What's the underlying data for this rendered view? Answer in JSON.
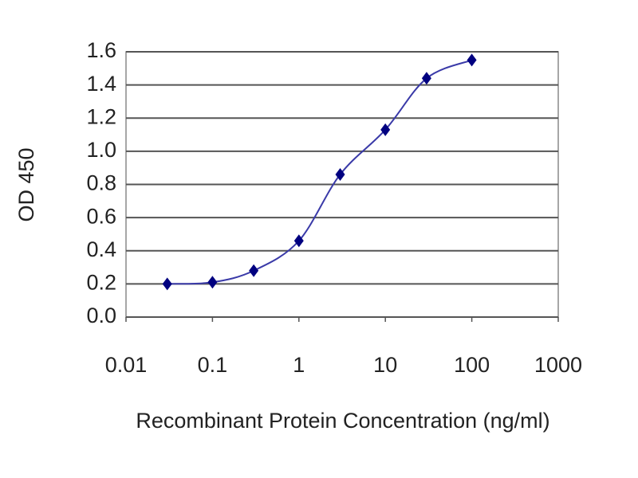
{
  "chart_data": {
    "type": "line",
    "x_label": "Recombinant Protein Concentration (ng/ml)",
    "y_label": "OD 450",
    "x": [
      0.03,
      0.1,
      0.3,
      1,
      3,
      10,
      30,
      100
    ],
    "values": [
      0.2,
      0.21,
      0.28,
      0.46,
      0.86,
      1.13,
      1.44,
      1.55
    ],
    "color": "#000080",
    "line_color": "#3a3aa8",
    "xscale": "log",
    "xlim": [
      0.01,
      1000
    ],
    "xticks": [
      0.01,
      0.1,
      1,
      10,
      100,
      1000
    ],
    "ylim": [
      0,
      1.6
    ],
    "yticks": [
      {
        "value": 0,
        "label": "0.0"
      },
      0.2,
      0.4,
      0.6,
      0.8,
      {
        "value": 1,
        "label": "1.0"
      },
      1.2,
      1.4,
      1.6
    ],
    "grid": true
  }
}
